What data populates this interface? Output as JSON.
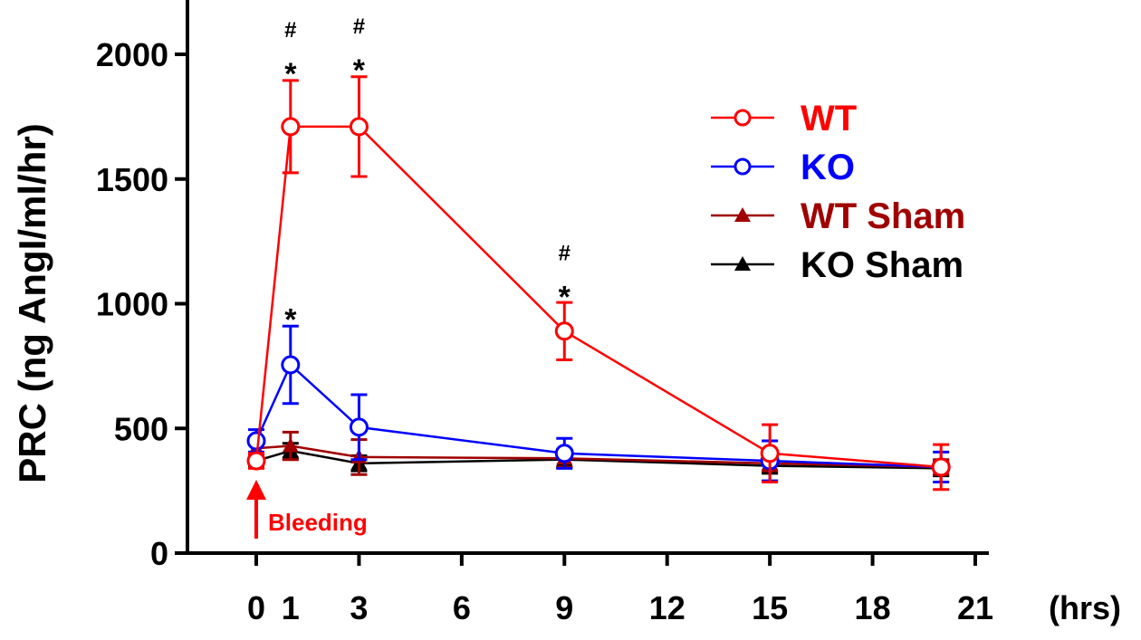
{
  "chart_data": {
    "type": "line",
    "title": "",
    "xlabel": "(hrs)",
    "ylabel": "PRC (ng AngI/ml/hr)",
    "xlim": [
      0,
      21
    ],
    "ylim": [
      0,
      2000
    ],
    "xticks": [
      0,
      1,
      3,
      6,
      9,
      12,
      15,
      18,
      21
    ],
    "yticks": [
      0,
      500,
      1000,
      1500,
      2000
    ],
    "x": [
      0,
      1,
      3,
      9,
      15,
      20
    ],
    "series": [
      {
        "name": "WT",
        "color": "#ff0000",
        "marker": "open-circle",
        "values": [
          370,
          1710,
          1710,
          890,
          400,
          345
        ],
        "errors": [
          30,
          185,
          200,
          115,
          115,
          90
        ]
      },
      {
        "name": "KO",
        "color": "#0000ff",
        "marker": "open-circle",
        "values": [
          450,
          755,
          505,
          400,
          370,
          345
        ],
        "errors": [
          45,
          155,
          130,
          60,
          80,
          60
        ]
      },
      {
        "name": "WT Sham",
        "color": "#a00000",
        "marker": "filled-triangle",
        "values": [
          420,
          430,
          385,
          380,
          360,
          345
        ],
        "errors": [
          30,
          55,
          70,
          35,
          30,
          30
        ]
      },
      {
        "name": "KO Sham",
        "color": "#000000",
        "marker": "filled-triangle",
        "values": [
          370,
          410,
          360,
          375,
          350,
          340
        ],
        "errors": [
          25,
          30,
          30,
          30,
          30,
          30
        ]
      }
    ],
    "annotations": [
      {
        "x": 1,
        "y": 1895,
        "text": "*",
        "sub": "#"
      },
      {
        "x": 3,
        "y": 1910,
        "text": "*",
        "sub": "#"
      },
      {
        "x": 9,
        "y": 1000,
        "text": "*",
        "sub": "#"
      },
      {
        "x": 1,
        "y": 910,
        "text": "*",
        "sub": ""
      }
    ],
    "event_label": "Bleeding",
    "event_x": 0,
    "legend_position": "top-right",
    "grid": false
  }
}
